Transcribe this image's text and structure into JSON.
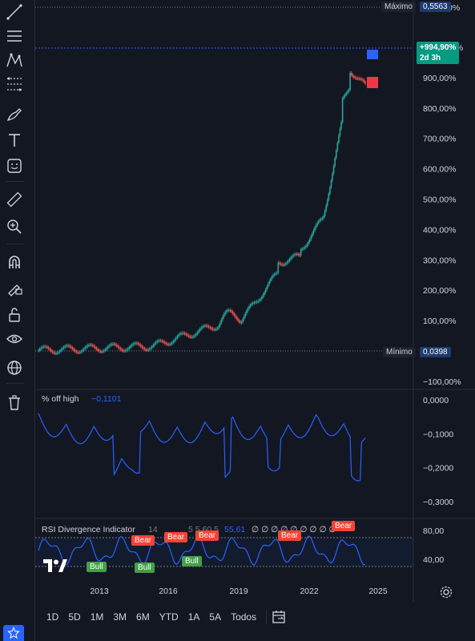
{
  "toolbar": {
    "tools": [
      "trend-line-icon",
      "horizontal-lines-icon",
      "pattern-icon",
      "fib-icon",
      "brush-icon",
      "text-icon",
      "sticker-icon",
      "ruler-icon",
      "zoom-in-icon",
      "magnet-icon",
      "lock-drawing-icon",
      "unlock-icon",
      "eye-icon",
      "globe-icon",
      "trash-icon"
    ]
  },
  "main_chart": {
    "max_label": "Máximo",
    "max_value": "0,5563",
    "min_label": "Mínimo",
    "min_value": "0,0398",
    "current_change": "+994,90%",
    "countdown": "2d 3h",
    "y_ticks": [
      "1.100,00%",
      "1.000,00%",
      "900,00%",
      "800,00%",
      "700,00%",
      "600,00%",
      "500,00%",
      "400,00%",
      "300,00%",
      "200,00%",
      "100,00%",
      "0,00%",
      "−100,00%"
    ]
  },
  "off_high": {
    "title": "% off high",
    "value": "−0,1101",
    "y_ticks": [
      "0,0000",
      "−0,1000",
      "−0,2000",
      "−0,3000"
    ]
  },
  "rsi": {
    "title": "RSI Divergence Indicator",
    "params": "14",
    "params2": "5 5 60 5",
    "value": "55,61",
    "zeros": "∅ ∅ ∅ ∅ ∅ ∅ ∅ ∅ ∅",
    "y_ticks": [
      "80,00",
      "40,00"
    ],
    "bull_label": "Bull",
    "bear_label": "Bear"
  },
  "x_axis": {
    "labels": [
      "2013",
      "2016",
      "2019",
      "2022",
      "2025"
    ]
  },
  "ranges": [
    "1D",
    "5D",
    "1M",
    "3M",
    "6M",
    "YTD",
    "1A",
    "5A",
    "Todos"
  ],
  "colors": {
    "background": "#131722",
    "up": "#26a69a",
    "down": "#ef5350",
    "line": "#2962ff",
    "accent": "#2962ff"
  }
}
